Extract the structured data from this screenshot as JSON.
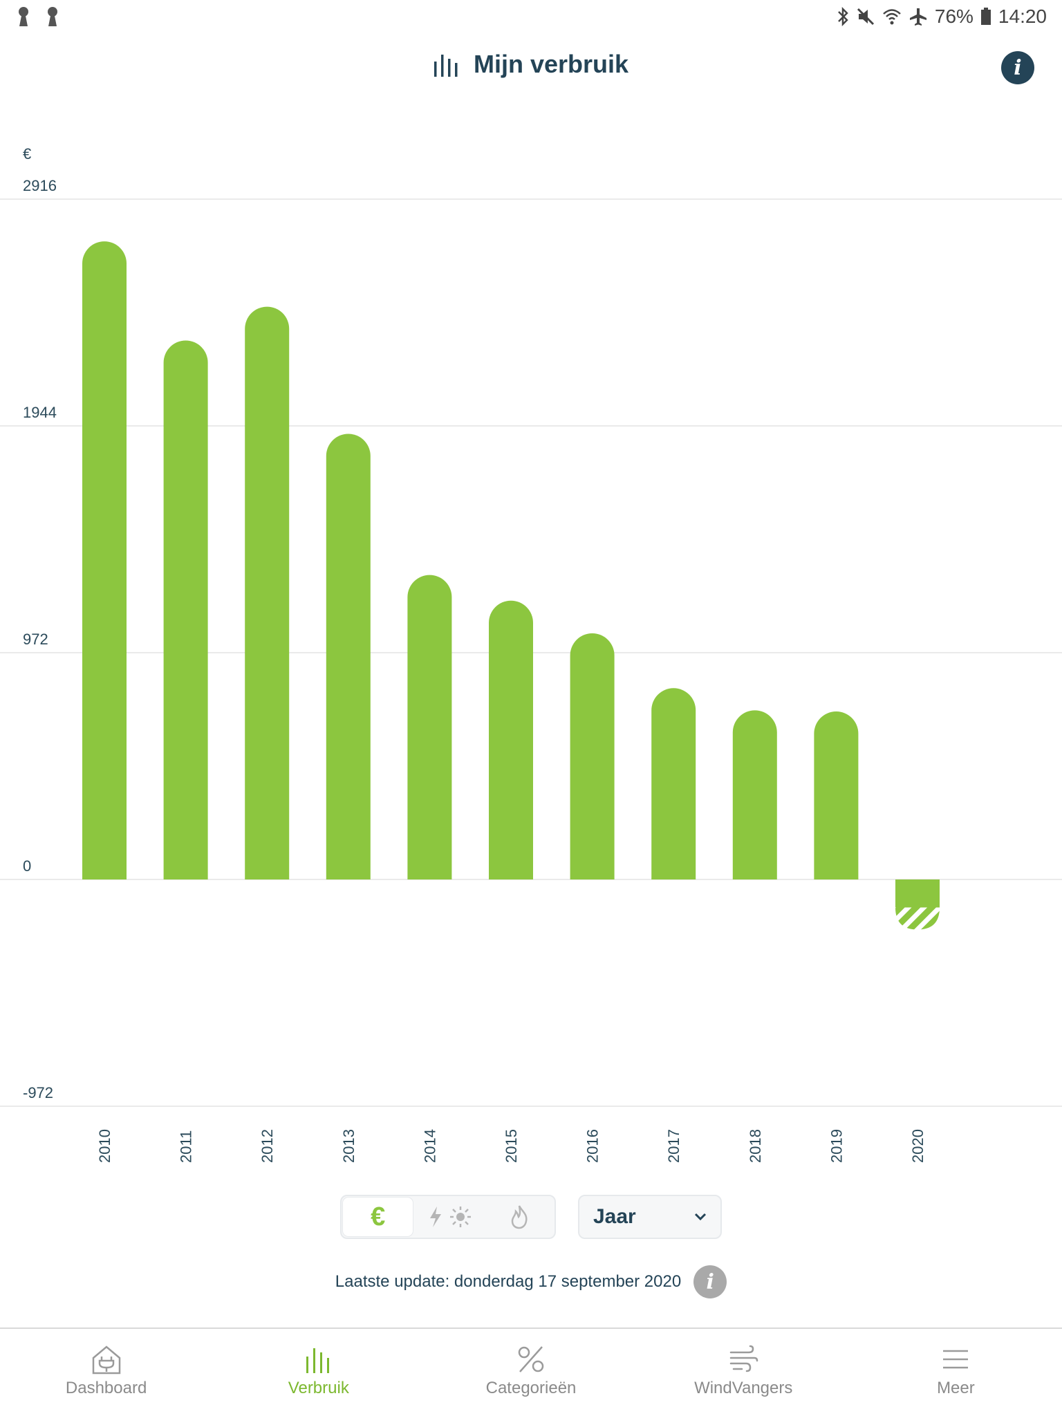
{
  "status_bar": {
    "battery": "76%",
    "time": "14:20"
  },
  "header": {
    "title": "Mijn verbruik",
    "info_icon": "info-icon"
  },
  "colors": {
    "primary_green": "#8cc63f",
    "dark_blue": "#244457",
    "grid": "#e3e3e3"
  },
  "chart_data": {
    "type": "bar",
    "ylabel": "€",
    "yticks": [
      2916,
      1944,
      972,
      0,
      -972
    ],
    "ylim": [
      -972,
      2916
    ],
    "grid": true,
    "categories": [
      "2010",
      "2011",
      "2012",
      "2013",
      "2014",
      "2015",
      "2016",
      "2017",
      "2018",
      "2019",
      "2020"
    ],
    "values": [
      2735,
      2310,
      2455,
      1910,
      1305,
      1195,
      1055,
      820,
      725,
      720,
      -215
    ],
    "estimated_portion_last": true
  },
  "controls": {
    "segment_active": "€",
    "segment_icons": [
      "euro",
      "lightning-sun-icon",
      "flame-icon"
    ],
    "period_select": "Jaar"
  },
  "update": {
    "text": "Laatste update: donderdag 17 september 2020"
  },
  "bottom_nav": [
    {
      "label": "Dashboard",
      "icon": "house-plug-icon",
      "active": false
    },
    {
      "label": "Verbruik",
      "icon": "bars-icon",
      "active": true
    },
    {
      "label": "Categorieën",
      "icon": "percent-icon",
      "active": false
    },
    {
      "label": "WindVangers",
      "icon": "wind-icon",
      "active": false
    },
    {
      "label": "Meer",
      "icon": "menu-icon",
      "active": false
    }
  ]
}
